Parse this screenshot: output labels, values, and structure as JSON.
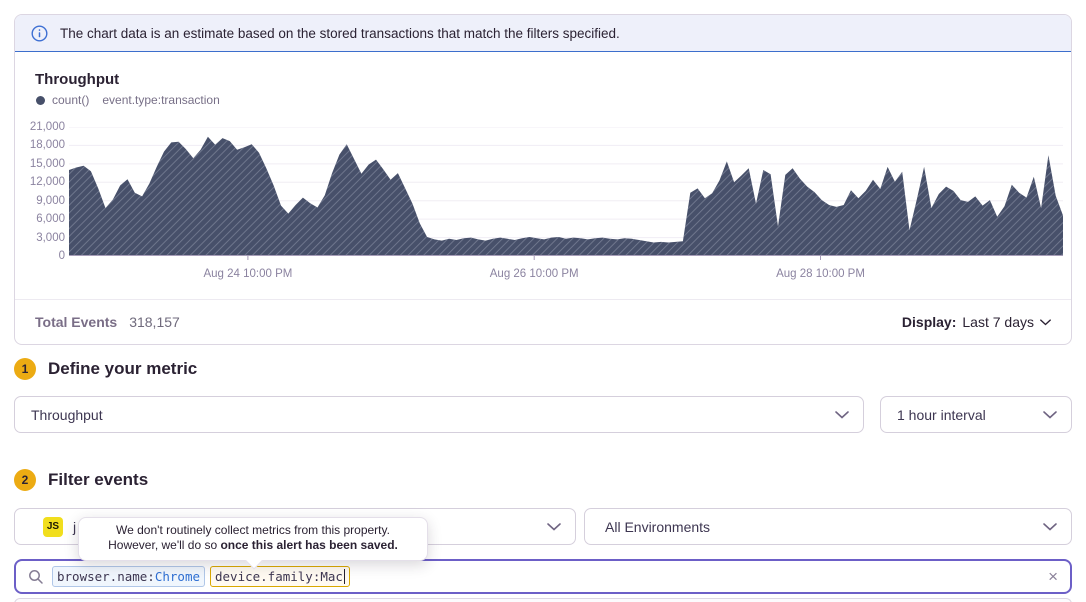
{
  "banner": {
    "text": "The chart data is an estimate based on the stored transactions that match the filters specified."
  },
  "chart_panel": {
    "title": "Throughput",
    "legend": {
      "marker_color": "#47506a",
      "aggregate": "count()",
      "query": "event.type:transaction"
    },
    "total_events_label": "Total Events",
    "total_events_value": "318,157",
    "display_label": "Display:",
    "display_value": "Last 7 days"
  },
  "chart_data": {
    "type": "area",
    "title": "Throughput",
    "ylabel": "",
    "xlabel": "",
    "ylim": [
      0,
      21000
    ],
    "grid": true,
    "fill_color": "#47506a",
    "hatch_color": "#9aa1b5",
    "y_ticks": [
      "21,000",
      "18,000",
      "15,000",
      "12,000",
      "9,000",
      "6,000",
      "3,000",
      "0"
    ],
    "x_ticks": [
      {
        "label": "Aug 24 10:00 PM",
        "pos": 0.18
      },
      {
        "label": "Aug 26 10:00 PM",
        "pos": 0.468
      },
      {
        "label": "Aug 28 10:00 PM",
        "pos": 0.756
      }
    ],
    "series": [
      {
        "name": "count() event.type:transaction",
        "values": [
          14000,
          14400,
          14700,
          13800,
          11000,
          7800,
          9200,
          11500,
          12500,
          10300,
          9700,
          11800,
          14500,
          17000,
          18500,
          18600,
          17400,
          15900,
          17300,
          19400,
          18100,
          19200,
          18700,
          17300,
          17700,
          18200,
          16800,
          14300,
          11500,
          8200,
          6900,
          8300,
          9500,
          8600,
          7900,
          9900,
          13500,
          16500,
          18200,
          15800,
          13400,
          14900,
          15700,
          14100,
          12400,
          13500,
          11000,
          8500,
          5300,
          3100,
          2700,
          2500,
          2800,
          2600,
          2900,
          3000,
          2700,
          2500,
          2800,
          3000,
          2800,
          2600,
          2900,
          3100,
          2900,
          2700,
          3000,
          3100,
          2800,
          3000,
          2900,
          2700,
          2900,
          3000,
          2800,
          2700,
          2900,
          2800,
          2600,
          2400,
          2200,
          2300,
          2200,
          2300,
          2400,
          10300,
          11000,
          9400,
          10200,
          12300,
          15400,
          12000,
          13100,
          14300,
          8500,
          14000,
          13300,
          4800,
          13200,
          14300,
          12600,
          11300,
          10400,
          9100,
          8300,
          8000,
          8300,
          10700,
          9400,
          10600,
          12400,
          10900,
          14500,
          12100,
          13700,
          4200,
          9200,
          14500,
          7800,
          10100,
          11300,
          10600,
          9100,
          8800,
          9700,
          8200,
          9100,
          6400,
          8100,
          11600,
          10300,
          9500,
          12900,
          7800,
          16400,
          9800,
          6600
        ]
      }
    ]
  },
  "step1": {
    "number": "1",
    "title": "Define your metric",
    "metric_select": "Throughput",
    "interval_select": "1 hour interval"
  },
  "step2": {
    "number": "2",
    "title": "Filter events",
    "project_badge": "JS",
    "project_name": "j",
    "environment_select": "All Environments"
  },
  "tooltip": {
    "line1": "We don't routinely collect metrics from this property.",
    "line2_prefix": "However, we'll do so ",
    "line2_bold": "once this alert has been saved."
  },
  "search": {
    "tokens": [
      {
        "key": "browser.name:",
        "value": "Chrome"
      },
      {
        "key": "device.family:",
        "value": "Mac"
      }
    ],
    "clear_label": "×"
  }
}
